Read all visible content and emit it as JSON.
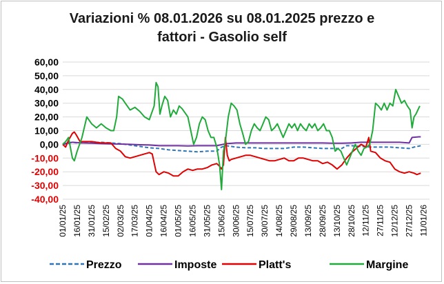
{
  "chart_data": {
    "type": "line",
    "title_line1": "Variazioni % 08.01.2026 su 08.01.2025 prezzo e",
    "title_line2": "fattori - Gasolio self",
    "xlabel": "",
    "ylabel": "",
    "ylim": [
      -40,
      60
    ],
    "y_ticks": [
      "60,00",
      "50,00",
      "40,00",
      "30,00",
      "20,00",
      "10,00",
      "0,00",
      "-10,00",
      "-20,00",
      "-30,00",
      "-40,00"
    ],
    "x_ticks": [
      "01/01/25",
      "16/01/25",
      "31/01/25",
      "15/02/25",
      "02/03/25",
      "17/03/25",
      "01/04/25",
      "16/04/25",
      "01/05/25",
      "16/05/25",
      "31/05/25",
      "15/06/25",
      "30/06/25",
      "15/07/25",
      "30/07/25",
      "14/08/25",
      "29/08/25",
      "13/09/25",
      "28/09/25",
      "13/10/25",
      "28/10/25",
      "12/11/25",
      "27/11/25",
      "12/12/25",
      "27/12/25",
      "11/01/26"
    ],
    "grid": "horizontal",
    "legend_position": "bottom",
    "series": [
      {
        "name": "Prezzo",
        "color": "#2e75b6",
        "style": "dashed",
        "points": [
          [
            0,
            0
          ],
          [
            5,
            0.5
          ],
          [
            10,
            1.5
          ],
          [
            15,
            1
          ],
          [
            20,
            1
          ],
          [
            30,
            1.2
          ],
          [
            40,
            1.5
          ],
          [
            50,
            1
          ],
          [
            60,
            0.5
          ],
          [
            70,
            -0.5
          ],
          [
            80,
            -1.5
          ],
          [
            90,
            -2.5
          ],
          [
            100,
            -3
          ],
          [
            110,
            -4
          ],
          [
            120,
            -4.5
          ],
          [
            130,
            -5
          ],
          [
            140,
            -5.5
          ],
          [
            150,
            -5
          ],
          [
            160,
            -5
          ],
          [
            165,
            -2
          ],
          [
            170,
            -1
          ],
          [
            180,
            -2
          ],
          [
            190,
            -2.5
          ],
          [
            200,
            -2.5
          ],
          [
            210,
            -3
          ],
          [
            220,
            -3
          ],
          [
            230,
            -3
          ],
          [
            240,
            -2
          ],
          [
            250,
            -2
          ],
          [
            260,
            -2.5
          ],
          [
            270,
            -3
          ],
          [
            280,
            -3
          ],
          [
            290,
            -3
          ],
          [
            295,
            -1
          ],
          [
            300,
            -1
          ],
          [
            310,
            -1.5
          ],
          [
            320,
            -2
          ],
          [
            330,
            -2
          ],
          [
            340,
            -2
          ],
          [
            350,
            -2.5
          ],
          [
            360,
            -3
          ],
          [
            365,
            -2
          ],
          [
            372,
            -1
          ]
        ]
      },
      {
        "name": "Imposte",
        "color": "#7030a0",
        "style": "solid",
        "points": [
          [
            0,
            0
          ],
          [
            5,
            1
          ],
          [
            10,
            1.5
          ],
          [
            20,
            1
          ],
          [
            30,
            0.8
          ],
          [
            40,
            0.5
          ],
          [
            50,
            0.3
          ],
          [
            60,
            0.2
          ],
          [
            70,
            0
          ],
          [
            80,
            -0.3
          ],
          [
            90,
            -0.5
          ],
          [
            100,
            -1
          ],
          [
            110,
            -1
          ],
          [
            120,
            -1
          ],
          [
            130,
            -1.2
          ],
          [
            140,
            -1
          ],
          [
            150,
            -1
          ],
          [
            160,
            -1
          ],
          [
            170,
            0.5
          ],
          [
            180,
            1
          ],
          [
            190,
            1
          ],
          [
            200,
            1
          ],
          [
            210,
            1
          ],
          [
            220,
            1
          ],
          [
            230,
            1
          ],
          [
            240,
            1
          ],
          [
            250,
            1
          ],
          [
            260,
            1
          ],
          [
            270,
            1
          ],
          [
            280,
            0.8
          ],
          [
            290,
            0.8
          ],
          [
            300,
            1
          ],
          [
            310,
            1.5
          ],
          [
            320,
            1.5
          ],
          [
            330,
            1.5
          ],
          [
            340,
            1.5
          ],
          [
            350,
            1.5
          ],
          [
            360,
            1
          ],
          [
            363,
            5
          ],
          [
            370,
            5.5
          ],
          [
            372,
            5.5
          ]
        ]
      },
      {
        "name": "Platt's",
        "color": "#e00000",
        "style": "solid",
        "points": [
          [
            0,
            0
          ],
          [
            3,
            -2
          ],
          [
            6,
            3
          ],
          [
            10,
            8
          ],
          [
            12,
            9
          ],
          [
            14,
            7
          ],
          [
            18,
            2
          ],
          [
            22,
            2
          ],
          [
            30,
            2
          ],
          [
            40,
            1
          ],
          [
            50,
            1
          ],
          [
            55,
            -3
          ],
          [
            60,
            -5
          ],
          [
            65,
            -9
          ],
          [
            70,
            -10
          ],
          [
            75,
            -9
          ],
          [
            80,
            -8
          ],
          [
            85,
            -7
          ],
          [
            90,
            -6
          ],
          [
            93,
            -7
          ],
          [
            97,
            -20
          ],
          [
            100,
            -22
          ],
          [
            105,
            -20
          ],
          [
            110,
            -21
          ],
          [
            115,
            -23
          ],
          [
            120,
            -23
          ],
          [
            125,
            -20
          ],
          [
            130,
            -18
          ],
          [
            135,
            -19
          ],
          [
            140,
            -18
          ],
          [
            145,
            -18
          ],
          [
            150,
            -17
          ],
          [
            155,
            -15
          ],
          [
            160,
            -14
          ],
          [
            163,
            -16
          ],
          [
            165,
            -18
          ],
          [
            167,
            -15
          ],
          [
            169,
            5
          ],
          [
            171,
            -8
          ],
          [
            173,
            -12
          ],
          [
            175,
            -11
          ],
          [
            180,
            -10
          ],
          [
            185,
            -9
          ],
          [
            190,
            -8
          ],
          [
            195,
            -8
          ],
          [
            200,
            -9
          ],
          [
            205,
            -10
          ],
          [
            210,
            -11
          ],
          [
            215,
            -12
          ],
          [
            220,
            -12
          ],
          [
            225,
            -11
          ],
          [
            230,
            -10
          ],
          [
            235,
            -12
          ],
          [
            240,
            -12
          ],
          [
            245,
            -10
          ],
          [
            250,
            -10
          ],
          [
            255,
            -11
          ],
          [
            260,
            -12
          ],
          [
            265,
            -12
          ],
          [
            270,
            -14
          ],
          [
            275,
            -13
          ],
          [
            280,
            -15
          ],
          [
            285,
            -18
          ],
          [
            290,
            -15
          ],
          [
            295,
            -10
          ],
          [
            300,
            -6
          ],
          [
            305,
            -3
          ],
          [
            310,
            0
          ],
          [
            315,
            -2
          ],
          [
            318,
            5
          ],
          [
            320,
            -5
          ],
          [
            325,
            -6
          ],
          [
            330,
            -10
          ],
          [
            335,
            -12
          ],
          [
            340,
            -13
          ],
          [
            345,
            -18
          ],
          [
            350,
            -20
          ],
          [
            355,
            -21
          ],
          [
            360,
            -20
          ],
          [
            365,
            -21
          ],
          [
            368,
            -22
          ],
          [
            372,
            -21
          ]
        ]
      },
      {
        "name": "Margine",
        "color": "#1faa3a",
        "style": "solid",
        "points": [
          [
            0,
            0
          ],
          [
            3,
            2
          ],
          [
            6,
            5
          ],
          [
            10,
            -10
          ],
          [
            12,
            -12
          ],
          [
            15,
            -5
          ],
          [
            20,
            5
          ],
          [
            25,
            20
          ],
          [
            30,
            15
          ],
          [
            35,
            12
          ],
          [
            40,
            15
          ],
          [
            45,
            12
          ],
          [
            50,
            10
          ],
          [
            53,
            10
          ],
          [
            56,
            20
          ],
          [
            58,
            35
          ],
          [
            62,
            33
          ],
          [
            65,
            30
          ],
          [
            70,
            25
          ],
          [
            75,
            27
          ],
          [
            80,
            24
          ],
          [
            85,
            20
          ],
          [
            90,
            18
          ],
          [
            95,
            28
          ],
          [
            97,
            45
          ],
          [
            99,
            42
          ],
          [
            101,
            22
          ],
          [
            103,
            28
          ],
          [
            106,
            35
          ],
          [
            109,
            32
          ],
          [
            112,
            20
          ],
          [
            115,
            25
          ],
          [
            118,
            22
          ],
          [
            121,
            28
          ],
          [
            124,
            26
          ],
          [
            127,
            23
          ],
          [
            130,
            20
          ],
          [
            133,
            10
          ],
          [
            136,
            0
          ],
          [
            139,
            5
          ],
          [
            142,
            15
          ],
          [
            145,
            20
          ],
          [
            148,
            18
          ],
          [
            151,
            10
          ],
          [
            154,
            5
          ],
          [
            157,
            5
          ],
          [
            160,
            -2
          ],
          [
            163,
            -15
          ],
          [
            165,
            -33
          ],
          [
            167,
            -5
          ],
          [
            169,
            2
          ],
          [
            172,
            20
          ],
          [
            175,
            30
          ],
          [
            178,
            28
          ],
          [
            181,
            25
          ],
          [
            184,
            15
          ],
          [
            187,
            8
          ],
          [
            190,
            0
          ],
          [
            193,
            2
          ],
          [
            196,
            10
          ],
          [
            199,
            15
          ],
          [
            202,
            12
          ],
          [
            205,
            10
          ],
          [
            208,
            15
          ],
          [
            211,
            20
          ],
          [
            214,
            18
          ],
          [
            217,
            10
          ],
          [
            220,
            12
          ],
          [
            223,
            15
          ],
          [
            226,
            10
          ],
          [
            229,
            5
          ],
          [
            232,
            10
          ],
          [
            235,
            15
          ],
          [
            238,
            12
          ],
          [
            241,
            15
          ],
          [
            244,
            10
          ],
          [
            247,
            15
          ],
          [
            250,
            12
          ],
          [
            253,
            10
          ],
          [
            256,
            15
          ],
          [
            259,
            12
          ],
          [
            262,
            15
          ],
          [
            265,
            10
          ],
          [
            268,
            12
          ],
          [
            271,
            15
          ],
          [
            274,
            10
          ],
          [
            277,
            10
          ],
          [
            280,
            5
          ],
          [
            283,
            -5
          ],
          [
            286,
            -3
          ],
          [
            289,
            -5
          ],
          [
            292,
            -10
          ],
          [
            295,
            -15
          ],
          [
            298,
            -10
          ],
          [
            301,
            -5
          ],
          [
            304,
            0
          ],
          [
            307,
            -5
          ],
          [
            310,
            -8
          ],
          [
            313,
            -3
          ],
          [
            316,
            -2
          ],
          [
            319,
            0
          ],
          [
            322,
            10
          ],
          [
            325,
            30
          ],
          [
            328,
            28
          ],
          [
            331,
            25
          ],
          [
            334,
            30
          ],
          [
            337,
            25
          ],
          [
            340,
            30
          ],
          [
            343,
            28
          ],
          [
            346,
            40
          ],
          [
            349,
            35
          ],
          [
            352,
            30
          ],
          [
            355,
            32
          ],
          [
            358,
            28
          ],
          [
            361,
            25
          ],
          [
            363,
            12
          ],
          [
            365,
            20
          ],
          [
            367,
            22
          ],
          [
            369,
            25
          ],
          [
            371,
            28
          ]
        ]
      }
    ]
  }
}
